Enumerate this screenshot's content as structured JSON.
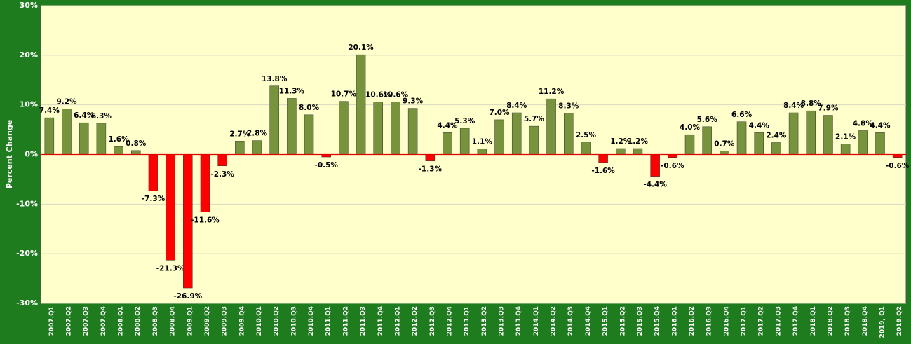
{
  "chart_data": {
    "type": "bar",
    "y_label": "Percent Change",
    "categories": [
      "2007.Q1",
      "2007.Q2",
      "2007.Q3",
      "2007.Q4",
      "2008.Q1",
      "2008.Q2",
      "2008.Q3",
      "2008.Q4",
      "2009.Q1",
      "2009.Q2",
      "2009.Q3",
      "2009.Q4",
      "2010.Q1",
      "2010.Q2",
      "2010.Q3",
      "2010.Q4",
      "2011.Q1",
      "2011.Q2",
      "2011.Q3",
      "2011.Q4",
      "2012.Q1",
      "2012.Q2",
      "2012.Q3",
      "2012.Q4",
      "2013.Q1",
      "2013.Q2",
      "2013.Q3",
      "2013.Q4",
      "2014.Q1",
      "2014.Q2",
      "2014.Q3",
      "2014.Q4",
      "2015.Q1",
      "2015.Q2",
      "2015.Q3",
      "2015.Q4",
      "2016.Q1",
      "2016.Q2",
      "2016.Q3",
      "2016.Q4",
      "2017.Q1",
      "2017.Q2",
      "2017.Q3",
      "2017.Q4",
      "2018.Q1",
      "2018.Q2",
      "2018.Q3",
      "2018.Q4",
      "2019, Q1",
      "2019.Q2"
    ],
    "values": [
      7.4,
      9.2,
      6.4,
      6.3,
      1.6,
      0.8,
      -7.3,
      -21.3,
      -26.9,
      -11.6,
      -2.3,
      2.7,
      2.8,
      13.8,
      11.3,
      8.0,
      -0.5,
      10.7,
      20.1,
      10.6,
      10.6,
      9.3,
      -1.3,
      4.4,
      5.3,
      1.1,
      7.0,
      8.4,
      5.7,
      11.2,
      8.3,
      2.5,
      -1.6,
      1.2,
      1.2,
      -4.4,
      -0.6,
      4.0,
      5.6,
      0.7,
      6.6,
      4.4,
      2.4,
      8.4,
      8.8,
      7.9,
      2.1,
      4.8,
      4.4,
      -0.6
    ],
    "value_labels": [
      "7.4%",
      "9.2%",
      "6.4%",
      "6.3%",
      "1.6%",
      "0.8%",
      "-7.3%",
      "-21.3%",
      "-26.9%",
      "-11.6%",
      "-2.3%",
      "2.7%",
      "2.8%",
      "13.8%",
      "11.3%",
      "8.0%",
      "-0.5%",
      "10.7%",
      "20.1%",
      "10.6%",
      "10.6%",
      "9.3%",
      "-1.3%",
      "4.4%",
      "5.3%",
      "1.1%",
      "7.0%",
      "8.4%",
      "5.7%",
      "11.2%",
      "8.3%",
      "2.5%",
      "-1.6%",
      "1.2%",
      "1.2%",
      "-4.4%",
      "-0.6%",
      "4.0%",
      "5.6%",
      "0.7%",
      "6.6%",
      "4.4%",
      "2.4%",
      "8.4%",
      "8.8%",
      "7.9%",
      "2.1%",
      "4.8%",
      "4.4%",
      "-0.6%"
    ],
    "positive_color": "#77933c",
    "negative_color": "#ff0000",
    "ylim": [
      -30,
      30
    ],
    "yticks": [
      {
        "value": -30,
        "label": "-30%"
      },
      {
        "value": -20,
        "label": "-20%"
      },
      {
        "value": -10,
        "label": "-10%"
      },
      {
        "value": 0,
        "label": "0%"
      },
      {
        "value": 10,
        "label": "10%"
      },
      {
        "value": 20,
        "label": "20%"
      },
      {
        "value": 30,
        "label": "30%"
      }
    ],
    "grid": true
  }
}
